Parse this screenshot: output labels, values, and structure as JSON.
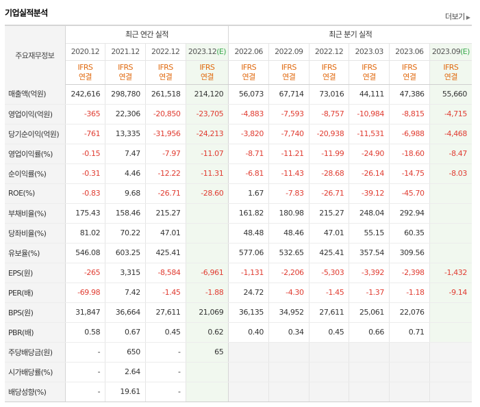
{
  "title": "기업실적분석",
  "more_label": "더보기",
  "header": {
    "row_label": "주요재무정보",
    "annual_group": "최근 연간 실적",
    "quarter_group": "최근 분기 실적",
    "annual_periods": [
      {
        "text": "2020.12",
        "est": ""
      },
      {
        "text": "2021.12",
        "est": ""
      },
      {
        "text": "2022.12",
        "est": ""
      },
      {
        "text": "2023.12",
        "est": "(E)"
      }
    ],
    "quarter_periods": [
      {
        "text": "2022.06",
        "est": ""
      },
      {
        "text": "2022.09",
        "est": ""
      },
      {
        "text": "2022.12",
        "est": ""
      },
      {
        "text": "2023.03",
        "est": ""
      },
      {
        "text": "2023.06",
        "est": ""
      },
      {
        "text": "2023.09",
        "est": "(E)"
      }
    ],
    "ifrs_line1": "IFRS",
    "ifrs_line2": "연결"
  },
  "rows": [
    {
      "label": "매출액(억원)",
      "values": [
        "242,616",
        "298,780",
        "261,518",
        "214,120",
        "56,073",
        "67,714",
        "73,016",
        "44,111",
        "47,386",
        "55,660"
      ]
    },
    {
      "label": "영업이익(억원)",
      "values": [
        "-365",
        "22,306",
        "-20,850",
        "-23,705",
        "-4,883",
        "-7,593",
        "-8,757",
        "-10,984",
        "-8,815",
        "-4,715"
      ]
    },
    {
      "label": "당기순이익(억원)",
      "values": [
        "-761",
        "13,335",
        "-31,956",
        "-24,213",
        "-3,820",
        "-7,740",
        "-20,938",
        "-11,531",
        "-6,988",
        "-4,468"
      ]
    },
    {
      "label": "영업이익률(%)",
      "values": [
        "-0.15",
        "7.47",
        "-7.97",
        "-11.07",
        "-8.71",
        "-11.21",
        "-11.99",
        "-24.90",
        "-18.60",
        "-8.47"
      ]
    },
    {
      "label": "순이익률(%)",
      "values": [
        "-0.31",
        "4.46",
        "-12.22",
        "-11.31",
        "-6.81",
        "-11.43",
        "-28.68",
        "-26.14",
        "-14.75",
        "-8.03"
      ]
    },
    {
      "label": "ROE(%)",
      "values": [
        "-0.83",
        "9.68",
        "-26.71",
        "-28.60",
        "1.67",
        "-7.83",
        "-26.71",
        "-39.12",
        "-45.70",
        ""
      ]
    },
    {
      "label": "부채비율(%)",
      "values": [
        "175.43",
        "158.46",
        "215.27",
        "",
        "161.82",
        "180.98",
        "215.27",
        "248.04",
        "292.94",
        ""
      ]
    },
    {
      "label": "당좌비율(%)",
      "values": [
        "81.02",
        "70.22",
        "47.01",
        "",
        "48.48",
        "48.46",
        "47.01",
        "55.15",
        "60.35",
        ""
      ]
    },
    {
      "label": "유보율(%)",
      "values": [
        "546.08",
        "603.25",
        "425.41",
        "",
        "577.06",
        "532.65",
        "425.41",
        "357.54",
        "309.56",
        ""
      ]
    },
    {
      "label": "EPS(원)",
      "values": [
        "-265",
        "3,315",
        "-8,584",
        "-6,961",
        "-1,131",
        "-2,206",
        "-5,303",
        "-3,392",
        "-2,398",
        "-1,432"
      ]
    },
    {
      "label": "PER(배)",
      "values": [
        "-69.98",
        "7.42",
        "-1.45",
        "-1.88",
        "24.72",
        "-4.30",
        "-1.45",
        "-1.37",
        "-1.18",
        "-9.14"
      ]
    },
    {
      "label": "BPS(원)",
      "values": [
        "31,847",
        "36,664",
        "27,611",
        "21,069",
        "36,135",
        "34,952",
        "27,611",
        "25,061",
        "22,076",
        ""
      ]
    },
    {
      "label": "PBR(배)",
      "values": [
        "0.58",
        "0.67",
        "0.45",
        "0.62",
        "0.40",
        "0.34",
        "0.45",
        "0.66",
        "0.71",
        ""
      ]
    },
    {
      "label": "주당배당금(원)",
      "values": [
        "-",
        "650",
        "-",
        "65"
      ]
    },
    {
      "label": "시가배당률(%)",
      "values": [
        "-",
        "2.64",
        "-",
        ""
      ]
    },
    {
      "label": "배당성향(%)",
      "values": [
        "-",
        "19.61",
        "-",
        ""
      ]
    }
  ],
  "colors": {
    "negative": "#e03c31",
    "ifrs": "#e06a10",
    "estimate": "#38a84c",
    "estimate_bg": "#f1f8ef",
    "label_bg": "#f4f4f4"
  }
}
